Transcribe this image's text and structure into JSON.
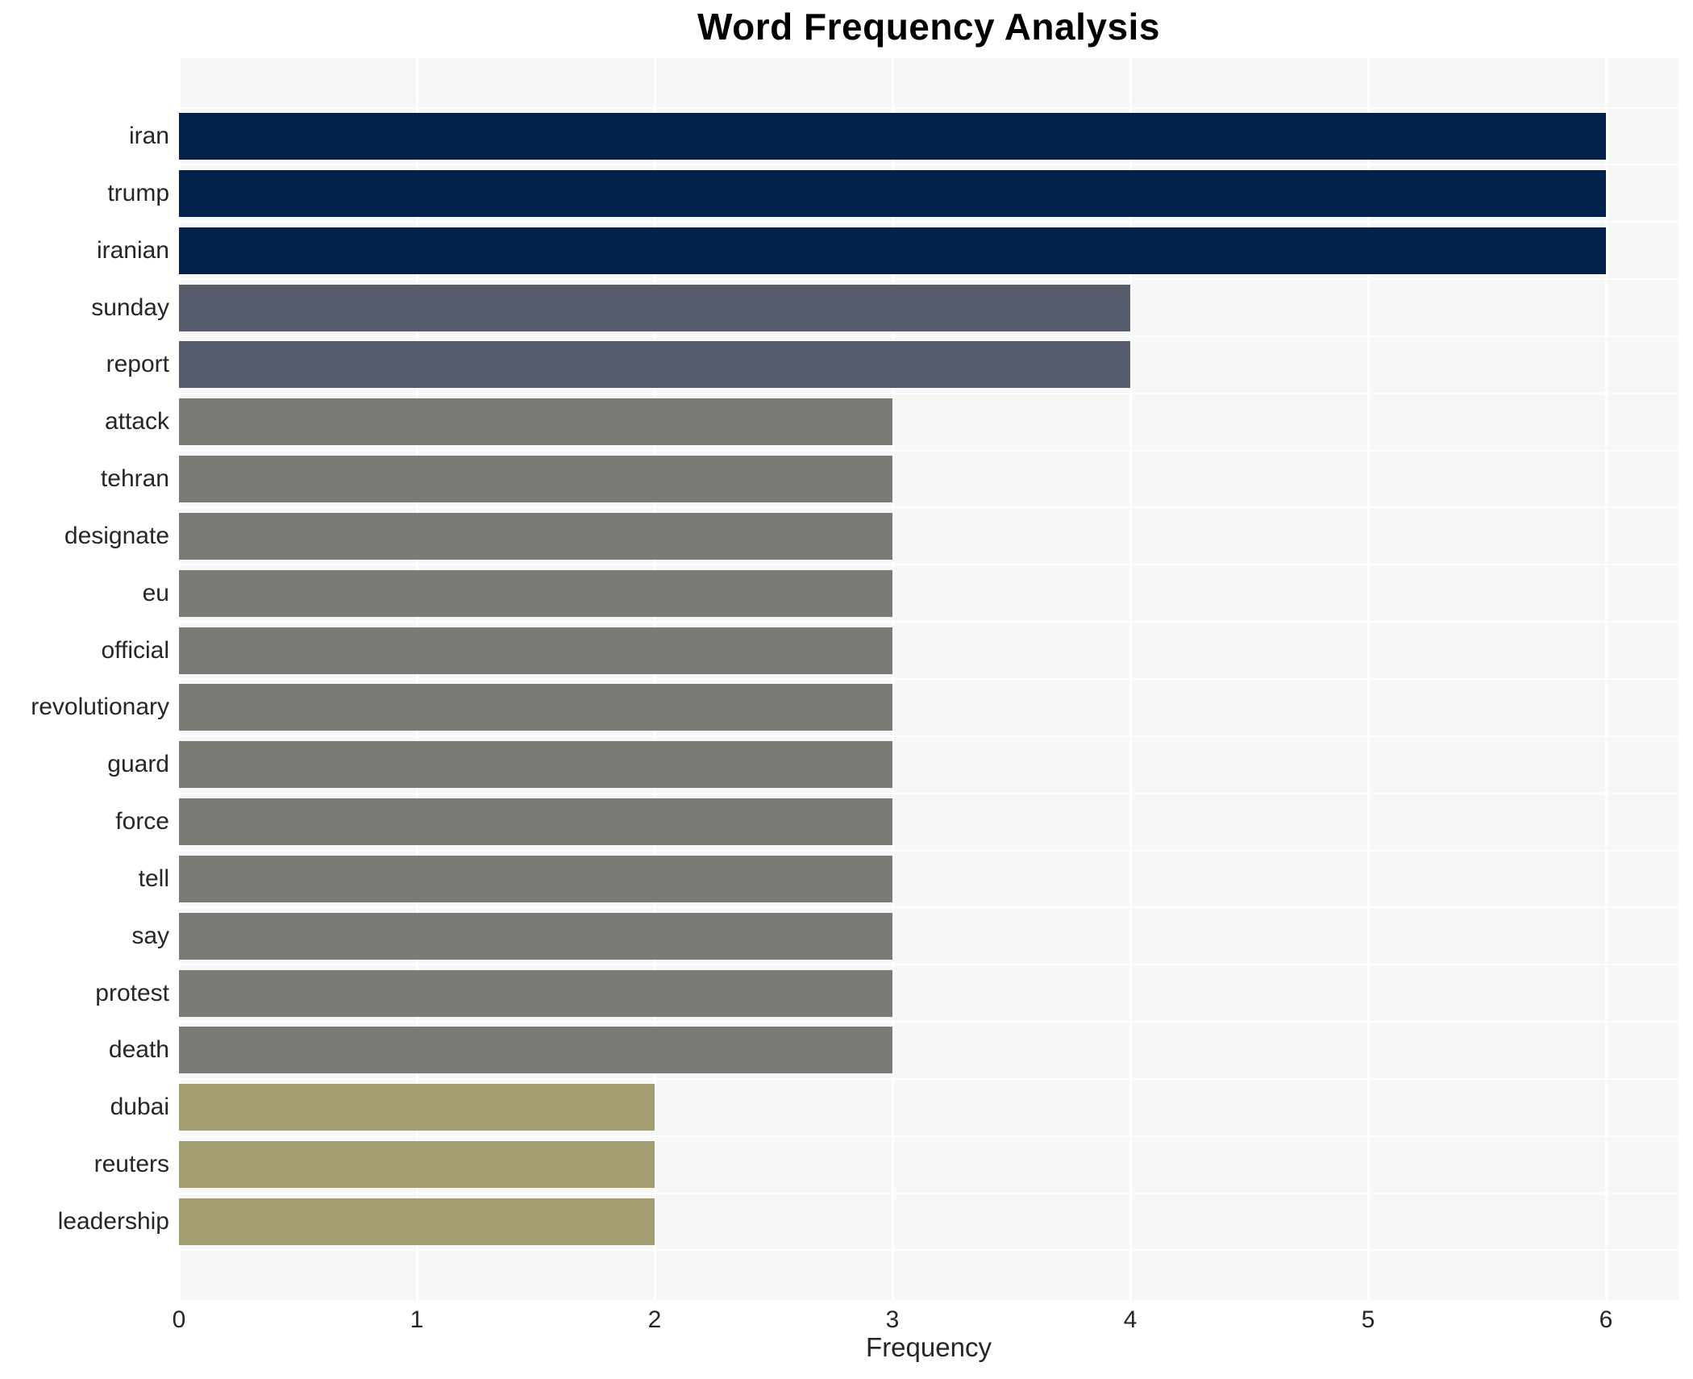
{
  "chart_data": {
    "type": "bar",
    "orientation": "horizontal",
    "title": "Word Frequency Analysis",
    "xlabel": "Frequency",
    "ylabel": "",
    "categories": [
      "iran",
      "trump",
      "iranian",
      "sunday",
      "report",
      "attack",
      "tehran",
      "designate",
      "eu",
      "official",
      "revolutionary",
      "guard",
      "force",
      "tell",
      "say",
      "protest",
      "death",
      "dubai",
      "reuters",
      "leadership"
    ],
    "values": [
      6,
      6,
      6,
      4,
      4,
      3,
      3,
      3,
      3,
      3,
      3,
      3,
      3,
      3,
      3,
      3,
      3,
      2,
      2,
      2
    ],
    "bar_colors": [
      "#02224c",
      "#02224c",
      "#02224c",
      "#565c6c",
      "#565c6c",
      "#7b7a74",
      "#7b7a74",
      "#7b7a74",
      "#7b7a74",
      "#7b7a74",
      "#7b7a74",
      "#7b7a74",
      "#7b7a74",
      "#7b7a74",
      "#7b7a74",
      "#7b7a74",
      "#7b7a74",
      "#a59d72",
      "#a59d72",
      "#a59d72"
    ],
    "xticks": [
      "0",
      "1",
      "2",
      "3",
      "4",
      "5",
      "6"
    ],
    "xlim": [
      0,
      6.3
    ],
    "grid": true,
    "legend": "none",
    "colors": {
      "figure_background": "#ffffff",
      "plot_background": "#f7f7f7",
      "gridline": "#ffffff",
      "tick_text": "#262626",
      "title_text": "#000000"
    }
  }
}
